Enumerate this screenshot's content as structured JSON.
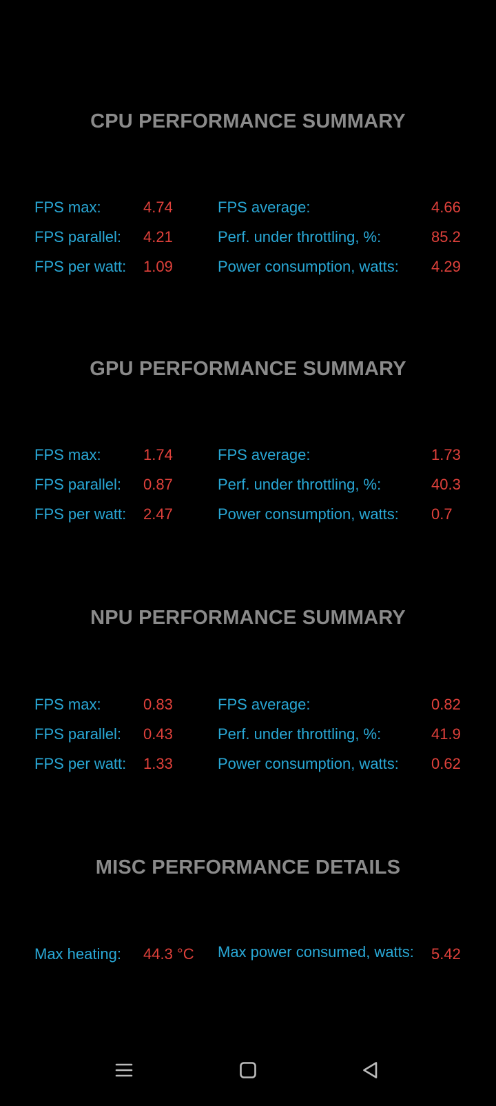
{
  "sections": [
    {
      "title": "CPU PERFORMANCE SUMMARY",
      "rows": [
        {
          "label1": "FPS max:",
          "value1": "4.74",
          "label2": "FPS average:",
          "value2": "4.66"
        },
        {
          "label1": "FPS parallel:",
          "value1": "4.21",
          "label2": "Perf. under throttling, %:",
          "value2": "85.2"
        },
        {
          "label1": "FPS per watt:",
          "value1": "1.09",
          "label2": "Power consumption, watts:",
          "value2": "4.29"
        }
      ]
    },
    {
      "title": "GPU PERFORMANCE SUMMARY",
      "rows": [
        {
          "label1": "FPS max:",
          "value1": "1.74",
          "label2": "FPS average:",
          "value2": "1.73"
        },
        {
          "label1": "FPS parallel:",
          "value1": "0.87",
          "label2": "Perf. under throttling, %:",
          "value2": "40.3"
        },
        {
          "label1": "FPS per watt:",
          "value1": "2.47",
          "label2": "Power consumption, watts:",
          "value2": "0.7"
        }
      ]
    },
    {
      "title": "NPU PERFORMANCE SUMMARY",
      "rows": [
        {
          "label1": "FPS max:",
          "value1": "0.83",
          "label2": "FPS average:",
          "value2": "0.82"
        },
        {
          "label1": "FPS parallel:",
          "value1": "0.43",
          "label2": "Perf. under throttling, %:",
          "value2": "41.9"
        },
        {
          "label1": "FPS per watt:",
          "value1": "1.33",
          "label2": "Power consumption, watts:",
          "value2": "0.62"
        }
      ]
    },
    {
      "title": "MISC PERFORMANCE DETAILS",
      "rows": [
        {
          "label1": "Max heating:",
          "value1": "44.3 °C",
          "label2": "Max power consumed, watts:",
          "value2": "5.42"
        }
      ]
    }
  ],
  "navbar": {
    "icons": [
      "menu-icon",
      "home-icon",
      "back-icon"
    ]
  },
  "colors": {
    "background": "#000000",
    "title": "#8a8a8a",
    "label": "#29a8d6",
    "value": "#e0413b",
    "nav_icon": "#bbbbbb"
  }
}
